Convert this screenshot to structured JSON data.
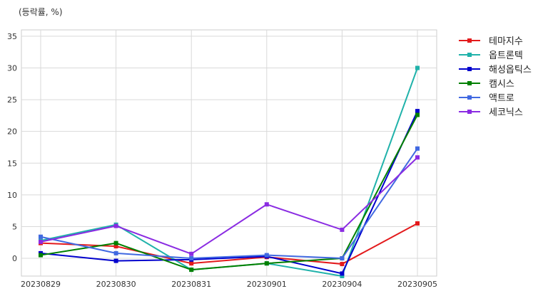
{
  "unit_label": "(등락률, %)",
  "chart_data": {
    "type": "line",
    "x": [
      "20230829",
      "20230830",
      "20230831",
      "20230901",
      "20230904",
      "20230905"
    ],
    "ylim": [
      -2.8,
      36
    ],
    "yticks": [
      0,
      5,
      10,
      15,
      20,
      25,
      30,
      35
    ],
    "grid": true,
    "legend_position": "outside-right",
    "series": [
      {
        "name": "테마지수",
        "color": "#e31a1c",
        "values": [
          2.4,
          1.9,
          -0.8,
          0.2,
          -0.9,
          5.5
        ]
      },
      {
        "name": "옵트론텍",
        "color": "#20b2aa",
        "values": [
          2.8,
          5.3,
          -1.8,
          -0.8,
          -2.8,
          30.0
        ]
      },
      {
        "name": "해성옵틱스",
        "color": "#0000cd",
        "values": [
          0.8,
          -0.4,
          -0.2,
          0.3,
          -2.4,
          23.2
        ]
      },
      {
        "name": "캠시스",
        "color": "#008000",
        "values": [
          0.5,
          2.4,
          -1.8,
          -0.8,
          0.0,
          22.6
        ]
      },
      {
        "name": "액트로",
        "color": "#4169e1",
        "values": [
          3.4,
          0.8,
          0.0,
          0.5,
          0.0,
          17.3
        ]
      },
      {
        "name": "세코닉스",
        "color": "#8a2be2",
        "values": [
          2.6,
          5.1,
          0.7,
          8.5,
          4.5,
          15.9
        ]
      }
    ]
  }
}
